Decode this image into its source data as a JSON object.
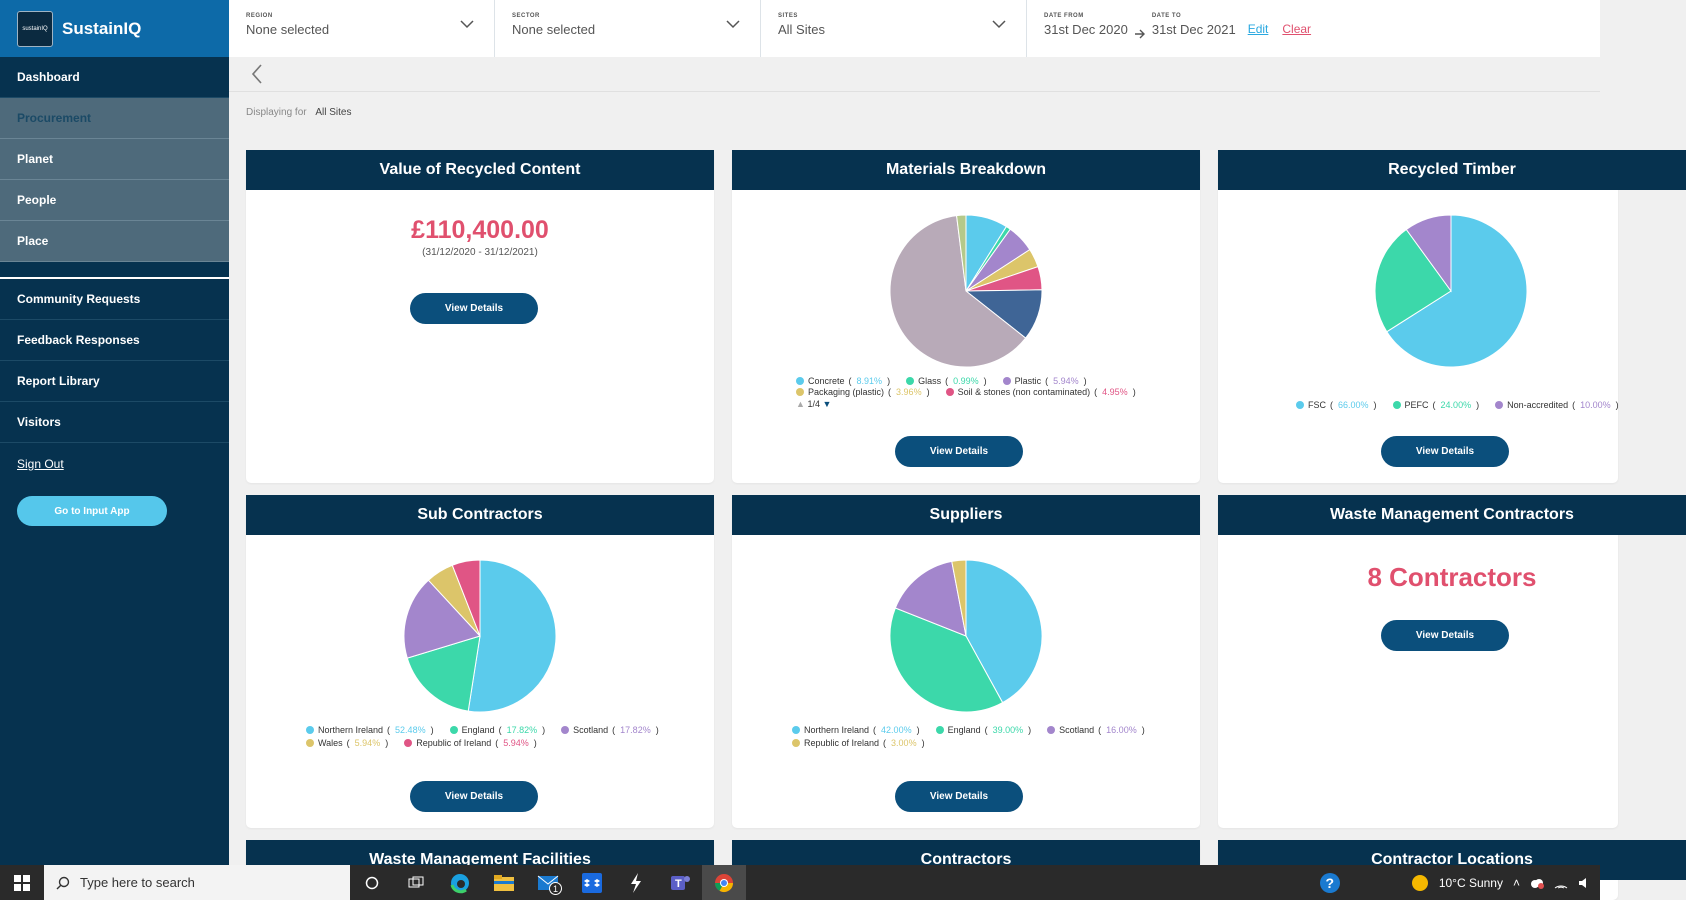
{
  "app": {
    "logo_text": "sustainIQ",
    "name": "SustainIQ"
  },
  "sidebar": {
    "items": [
      {
        "label": "Dashboard"
      },
      {
        "label": "Procurement"
      },
      {
        "label": "Planet"
      },
      {
        "label": "People"
      },
      {
        "label": "Place"
      }
    ],
    "lower_items": [
      {
        "label": "Community Requests"
      },
      {
        "label": "Feedback Responses"
      },
      {
        "label": "Report Library"
      },
      {
        "label": "Visitors"
      }
    ],
    "sign_out": "Sign Out",
    "input_app_button": "Go to Input App"
  },
  "filters": {
    "region": {
      "label": "REGION",
      "value": "None selected"
    },
    "sector": {
      "label": "SECTOR",
      "value": "None selected"
    },
    "sites": {
      "label": "SITES",
      "value": "All Sites"
    },
    "date_from": {
      "label": "DATE FROM",
      "value": "31st Dec 2020"
    },
    "date_to": {
      "label": "DATE TO",
      "value": "31st Dec 2021"
    },
    "edit": "Edit",
    "clear": "Clear"
  },
  "displaying": {
    "label": "Displaying for",
    "value": "All Sites"
  },
  "cards": {
    "recycled_content": {
      "title": "Value of Recycled Content",
      "amount": "£110,400.00",
      "period": "(31/12/2020 - 31/12/2021)",
      "button": "View Details"
    },
    "materials": {
      "title": "Materials Breakdown",
      "button": "View Details",
      "pager": "1/4"
    },
    "timber": {
      "title": "Recycled Timber",
      "button": "View Details"
    },
    "subcontractors": {
      "title": "Sub Contractors",
      "button": "View Details"
    },
    "suppliers": {
      "title": "Suppliers",
      "button": "View Details"
    },
    "waste_contractors": {
      "title": "Waste Management Contractors",
      "count_text": "8 Contractors",
      "button": "View Details"
    },
    "waste_facilities": {
      "title": "Waste Management Facilities"
    },
    "contractors": {
      "title": "Contractors"
    },
    "contractor_locations": {
      "title": "Contractor Locations"
    }
  },
  "chart_data": [
    {
      "type": "pie",
      "title": "Materials Breakdown",
      "series": [
        {
          "values": [
            8.91,
            0.99,
            5.94,
            3.96,
            4.95,
            10.89,
            62.38,
            1.98
          ]
        }
      ],
      "categories": [
        "Concrete",
        "Glass",
        "Plastic",
        "Packaging (plastic)",
        "Soil & stones (non contaminated)",
        "",
        "",
        ""
      ],
      "legend_labels": [
        {
          "name": "Concrete",
          "pct": "8.91%"
        },
        {
          "name": "Glass",
          "pct": "0.99%"
        },
        {
          "name": "Plastic",
          "pct": "5.94%"
        },
        {
          "name": "Packaging (plastic)",
          "pct": "3.96%"
        },
        {
          "name": "Soil & stones (non contaminated)",
          "pct": "4.95%"
        }
      ],
      "colors": [
        "#5bcbec",
        "#3cd8aa",
        "#a386cc",
        "#dcc56a",
        "#e05585",
        "#3f6596",
        "#b8aab8",
        "#b5c98a"
      ]
    },
    {
      "type": "pie",
      "title": "Recycled Timber",
      "categories": [
        "FSC",
        "PEFC",
        "Non-accredited"
      ],
      "series": [
        {
          "values": [
            66.0,
            24.0,
            10.0
          ]
        }
      ],
      "legend_labels": [
        {
          "name": "FSC",
          "pct": "66.00%"
        },
        {
          "name": "PEFC",
          "pct": "24.00%"
        },
        {
          "name": "Non-accredited",
          "pct": "10.00%"
        }
      ],
      "colors": [
        "#5bcbec",
        "#3cd8aa",
        "#a386cc"
      ]
    },
    {
      "type": "pie",
      "title": "Sub Contractors",
      "categories": [
        "Northern Ireland",
        "England",
        "Scotland",
        "Wales",
        "Republic of Ireland"
      ],
      "series": [
        {
          "values": [
            52.48,
            17.82,
            17.82,
            5.94,
            5.94
          ]
        }
      ],
      "legend_labels": [
        {
          "name": "Northern Ireland",
          "pct": "52.48%"
        },
        {
          "name": "England",
          "pct": "17.82%"
        },
        {
          "name": "Scotland",
          "pct": "17.82%"
        },
        {
          "name": "Wales",
          "pct": "5.94%"
        },
        {
          "name": "Republic of Ireland",
          "pct": "5.94%"
        }
      ],
      "colors": [
        "#5bcbec",
        "#3cd8aa",
        "#a386cc",
        "#dcc56a",
        "#e05585"
      ]
    },
    {
      "type": "pie",
      "title": "Suppliers",
      "categories": [
        "Northern Ireland",
        "England",
        "Scotland",
        "Republic of Ireland"
      ],
      "series": [
        {
          "values": [
            42.0,
            39.0,
            16.0,
            3.0
          ]
        }
      ],
      "legend_labels": [
        {
          "name": "Northern Ireland",
          "pct": "42.00%"
        },
        {
          "name": "England",
          "pct": "39.00%"
        },
        {
          "name": "Scotland",
          "pct": "16.00%"
        },
        {
          "name": "Republic of Ireland",
          "pct": "3.00%"
        }
      ],
      "colors": [
        "#5bcbec",
        "#3cd8aa",
        "#a386cc",
        "#dcc56a"
      ]
    }
  ],
  "taskbar": {
    "search_placeholder": "Type here to search",
    "mail_badge": "1",
    "weather": "10°C  Sunny"
  }
}
